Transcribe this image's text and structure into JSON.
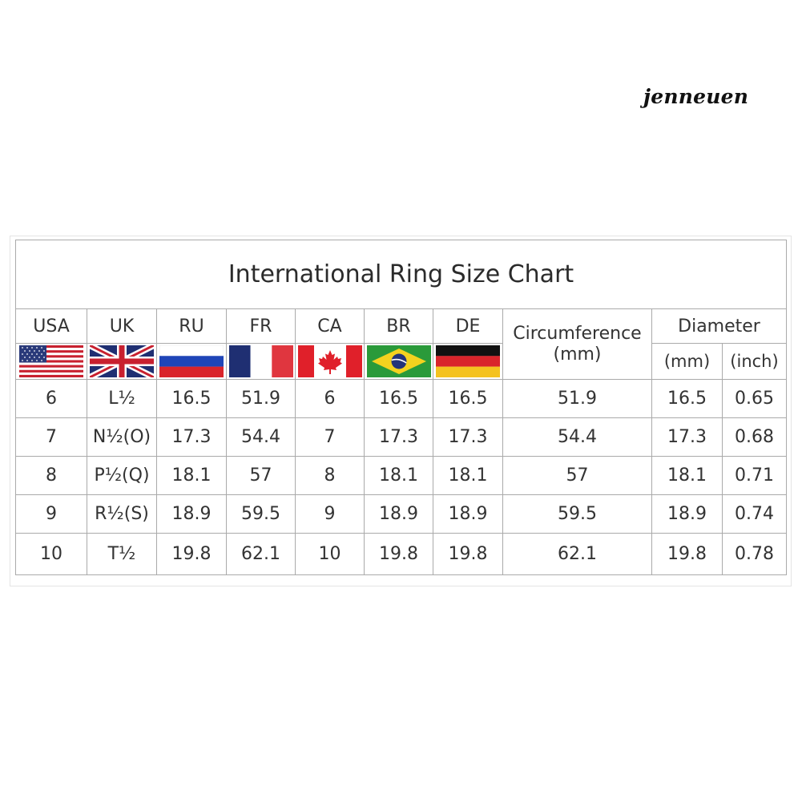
{
  "watermark": "jenneuen",
  "title": "International Ring Size Chart",
  "headers": {
    "usa": "USA",
    "uk": "UK",
    "ru": "RU",
    "fr": "FR",
    "ca": "CA",
    "br": "BR",
    "de": "DE",
    "circumference": "Circumference",
    "circumference_unit": "(mm)",
    "diameter": "Diameter",
    "diameter_mm": "(mm)",
    "diameter_inch": "(inch)"
  },
  "flags": [
    "usa-flag-icon",
    "uk-flag-icon",
    "russia-flag-icon",
    "france-flag-icon",
    "canada-flag-icon",
    "brazil-flag-icon",
    "germany-flag-icon"
  ],
  "rows": [
    {
      "usa": "6",
      "uk": "L½",
      "ru": "16.5",
      "fr": "51.9",
      "ca": "6",
      "br": "16.5",
      "de": "16.5",
      "circ": "51.9",
      "dmm": "16.5",
      "dinch": "0.65"
    },
    {
      "usa": "7",
      "uk": "N½(O)",
      "ru": "17.3",
      "fr": "54.4",
      "ca": "7",
      "br": "17.3",
      "de": "17.3",
      "circ": "54.4",
      "dmm": "17.3",
      "dinch": "0.68"
    },
    {
      "usa": "8",
      "uk": "P½(Q)",
      "ru": "18.1",
      "fr": "57",
      "ca": "8",
      "br": "18.1",
      "de": "18.1",
      "circ": "57",
      "dmm": "18.1",
      "dinch": "0.71"
    },
    {
      "usa": "9",
      "uk": "R½(S)",
      "ru": "18.9",
      "fr": "59.5",
      "ca": "9",
      "br": "18.9",
      "de": "18.9",
      "circ": "59.5",
      "dmm": "18.9",
      "dinch": "0.74"
    },
    {
      "usa": "10",
      "uk": "T½",
      "ru": "19.8",
      "fr": "62.1",
      "ca": "10",
      "br": "19.8",
      "de": "19.8",
      "circ": "62.1",
      "dmm": "19.8",
      "dinch": "0.78"
    }
  ]
}
